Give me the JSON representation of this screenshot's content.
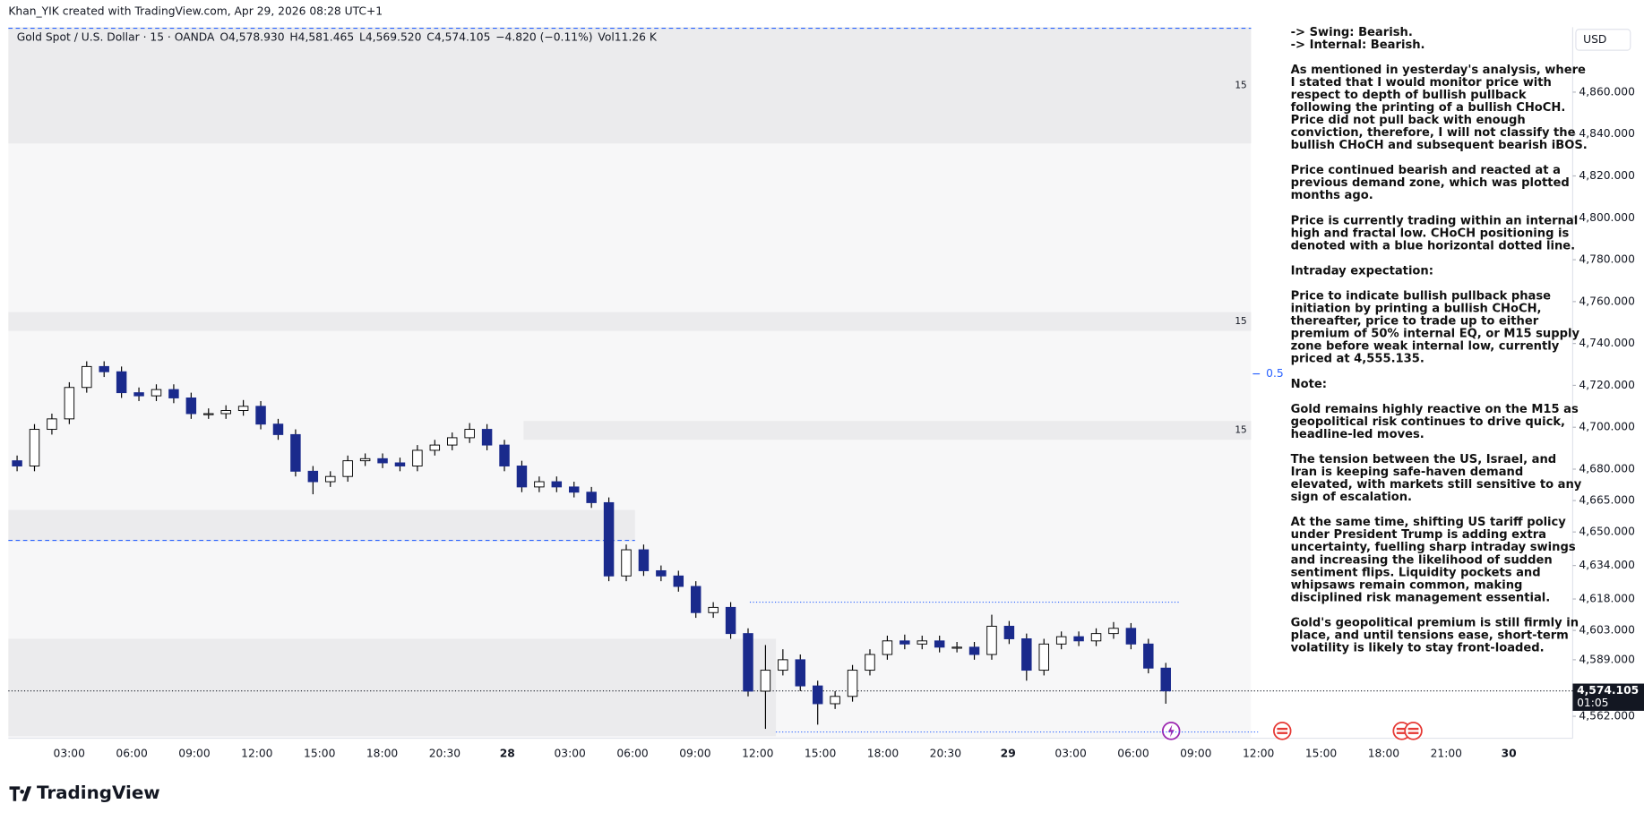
{
  "header": {
    "credit": "Khan_YIK created with TradingView.com, Apr 29, 2026 08:28 UTC+1"
  },
  "footer": {
    "brand": "TradingView"
  },
  "chart_data": {
    "type": "candlestick",
    "symbol": "Gold Spot / U.S. Dollar · 15 · OANDA",
    "legend": [
      "O4,578.930",
      "H4,581.465",
      "L4,569.520",
      "C4,574.105",
      "−4.820 (−0.11%)",
      "Vol11.26 K"
    ],
    "currency": "USD",
    "up_color": "#ffffff",
    "down_color": "#1a2a8c",
    "wick_color": "#000000",
    "ylim": [
      4551.5,
      4891
    ],
    "yticks": [
      {
        "value": 4860,
        "label": "4,860.000"
      },
      {
        "value": 4840,
        "label": "4,840.000"
      },
      {
        "value": 4820,
        "label": "4,820.000"
      },
      {
        "value": 4800,
        "label": "4,800.000"
      },
      {
        "value": 4780,
        "label": "4,780.000"
      },
      {
        "value": 4760,
        "label": "4,760.000"
      },
      {
        "value": 4740,
        "label": "4,740.000"
      },
      {
        "value": 4720,
        "label": "4,720.000"
      },
      {
        "value": 4700,
        "label": "4,700.000"
      },
      {
        "value": 4680,
        "label": "4,680.000"
      },
      {
        "value": 4665,
        "label": "4,665.000"
      },
      {
        "value": 4650,
        "label": "4,650.000"
      },
      {
        "value": 4634,
        "label": "4,634.000"
      },
      {
        "value": 4618,
        "label": "4,618.000"
      },
      {
        "value": 4603,
        "label": "4,603.000"
      },
      {
        "value": 4589,
        "label": "4,589.000"
      },
      {
        "value": 4562,
        "label": "4,562.000"
      }
    ],
    "grid": false,
    "time_labels": [
      "03:00",
      "06:00",
      "09:00",
      "12:00",
      "15:00",
      "18:00",
      "20:30",
      "28",
      "03:00",
      "06:00",
      "09:00",
      "12:00",
      "15:00",
      "18:00",
      "20:30",
      "29",
      "03:00",
      "06:00",
      "09:00",
      "12:00",
      "15:00",
      "18:00",
      "21:00",
      "30"
    ],
    "candles": [
      [
        4684,
        4686.5,
        4679,
        4681.5
      ],
      [
        4681.5,
        4701.5,
        4679,
        4699
      ],
      [
        4699,
        4706.5,
        4696.5,
        4704
      ],
      [
        4704,
        4721.5,
        4701.5,
        4719
      ],
      [
        4719,
        4731.5,
        4716.5,
        4729
      ],
      [
        4729,
        4731.5,
        4724,
        4726.5
      ],
      [
        4726.5,
        4729,
        4714,
        4716.5
      ],
      [
        4716.5,
        4719,
        4712.5,
        4715
      ],
      [
        4715,
        4720.5,
        4712.5,
        4718
      ],
      [
        4718,
        4720.5,
        4711.5,
        4714
      ],
      [
        4714,
        4716.5,
        4704,
        4706.5
      ],
      [
        4706.5,
        4709,
        4704,
        4706.5
      ],
      [
        4706.5,
        4710.5,
        4704,
        4708
      ],
      [
        4708,
        4713,
        4705.5,
        4710
      ],
      [
        4710,
        4712.5,
        4699,
        4701.5
      ],
      [
        4701.5,
        4704,
        4694,
        4696.5
      ],
      [
        4696.5,
        4699,
        4676.5,
        4679
      ],
      [
        4679,
        4681.5,
        4668,
        4674
      ],
      [
        4674,
        4679,
        4671.5,
        4676.5
      ],
      [
        4676.5,
        4686.5,
        4674,
        4684
      ],
      [
        4684,
        4687.5,
        4681.5,
        4685
      ],
      [
        4685,
        4687.5,
        4680.5,
        4683
      ],
      [
        4683,
        4685.5,
        4679,
        4681.5
      ],
      [
        4681.5,
        4691.5,
        4679,
        4689
      ],
      [
        4689,
        4694,
        4686.5,
        4691.5
      ],
      [
        4691.5,
        4697.5,
        4689,
        4695
      ],
      [
        4695,
        4702,
        4692.5,
        4699
      ],
      [
        4699,
        4701.5,
        4689,
        4691.5
      ],
      [
        4691.5,
        4694,
        4679,
        4681.5
      ],
      [
        4681.5,
        4684,
        4669,
        4671.5
      ],
      [
        4671.5,
        4676.5,
        4669,
        4674
      ],
      [
        4674,
        4676.5,
        4669,
        4671.5
      ],
      [
        4671.5,
        4674,
        4666.5,
        4669
      ],
      [
        4669,
        4671.5,
        4661.5,
        4664
      ],
      [
        4664,
        4666.5,
        4626.5,
        4629
      ],
      [
        4629,
        4644,
        4626.5,
        4641.5
      ],
      [
        4641.5,
        4644,
        4629,
        4631.5
      ],
      [
        4631.5,
        4634,
        4626.5,
        4629
      ],
      [
        4629,
        4631.5,
        4621.5,
        4624
      ],
      [
        4624,
        4626.5,
        4609,
        4611.5
      ],
      [
        4611.5,
        4616.5,
        4609,
        4614
      ],
      [
        4614,
        4616.5,
        4599,
        4601.5
      ],
      [
        4601.5,
        4604,
        4571.5,
        4574
      ],
      [
        4574,
        4596,
        4556,
        4584
      ],
      [
        4584,
        4594,
        4581.5,
        4589
      ],
      [
        4589,
        4591.5,
        4574,
        4576.5
      ],
      [
        4576.5,
        4579,
        4558,
        4568
      ],
      [
        4568,
        4574,
        4565.5,
        4571.5
      ],
      [
        4571.5,
        4586.5,
        4569,
        4584
      ],
      [
        4584,
        4594,
        4581.5,
        4591.5
      ],
      [
        4591.5,
        4600.5,
        4589,
        4598
      ],
      [
        4598,
        4601,
        4594,
        4596.5
      ],
      [
        4596.5,
        4600.5,
        4594,
        4598
      ],
      [
        4598,
        4600.5,
        4592.5,
        4595
      ],
      [
        4595,
        4597.5,
        4592.5,
        4595
      ],
      [
        4595,
        4597.5,
        4589,
        4591.5
      ],
      [
        4591.5,
        4610.5,
        4589,
        4605
      ],
      [
        4605,
        4607.5,
        4596.5,
        4599
      ],
      [
        4599,
        4601.5,
        4579,
        4584
      ],
      [
        4584,
        4599,
        4581.5,
        4596.5
      ],
      [
        4596.5,
        4602.5,
        4594,
        4600
      ],
      [
        4600,
        4602.5,
        4595.5,
        4598
      ],
      [
        4598,
        4604,
        4595.5,
        4601.5
      ],
      [
        4601.5,
        4607,
        4599,
        4604
      ],
      [
        4604,
        4606.5,
        4594,
        4596.5
      ],
      [
        4596.5,
        4599,
        4582.5,
        4585
      ],
      [
        4585,
        4587.5,
        4568,
        4574.105
      ]
    ],
    "zones": [
      {
        "top": 4891,
        "bottom": 4835.5,
        "from": 0,
        "to": 71.4,
        "label": "15"
      },
      {
        "top": 4755,
        "bottom": 4746,
        "from": 0,
        "to": 71.4,
        "label": "15"
      },
      {
        "top": 4703,
        "bottom": 4694,
        "from": 29.6,
        "to": 71.4,
        "label": "15"
      },
      {
        "top": 4660.5,
        "bottom": 4645.5,
        "from": 0,
        "to": 36
      },
      {
        "top": 4599,
        "bottom": 4552.5,
        "from": 0,
        "to": 44.1
      }
    ],
    "zone_color": "#ebebed",
    "levels": [
      {
        "price": 4890.5,
        "from": 0,
        "to": 71.4,
        "color": "#2962ff",
        "style": "dashed"
      },
      {
        "price": 4646,
        "from": 0,
        "to": 36,
        "color": "#2962ff",
        "style": "dashed"
      },
      {
        "price": 4616.5,
        "from": 42.6,
        "to": 67.3,
        "color": "#2962ff",
        "style": "dotted"
      },
      {
        "price": 4554.5,
        "from": 44.1,
        "to": 71.8,
        "color": "#2962ff",
        "style": "dotted"
      },
      {
        "price": 4725.5,
        "from": 71.5,
        "to": 71.9,
        "color": "#2962ff",
        "style": "solid",
        "label": "0.5"
      }
    ],
    "price_label": {
      "value": 4574.105,
      "label": "4,574.105"
    },
    "countdown": "01:05"
  },
  "notes": {
    "paragraphs": [
      [
        "-> Swing: Bearish.",
        "-> Internal: Bearish."
      ],
      [
        "As mentioned in yesterday's analysis, where",
        "I stated that I would monitor price with",
        "respect to depth of bullish pullback",
        "following the printing of a bullish CHoCH.",
        "Price did not pull back with enough",
        "conviction, therefore, I will not classify the",
        "bullish CHoCH and subsequent bearish iBOS."
      ],
      [
        "Price continued bearish and reacted at a",
        "previous demand zone, which was plotted",
        "months ago."
      ],
      [
        "Price is currently trading within an internal",
        "high and fractal low.  CHoCH positioning is",
        "denoted with a blue horizontal dotted line."
      ],
      [
        "Intraday expectation:"
      ],
      [
        "Price to indicate bullish pullback phase",
        "initiation by printing a bullish CHoCH,",
        "thereafter, price to trade up to either",
        "premium of 50% internal EQ, or M15 supply",
        "zone before weak internal low, currently",
        "priced at 4,555.135."
      ],
      [
        "Note:"
      ],
      [
        "Gold remains highly reactive on the M15 as",
        "geopolitical risk continues to drive quick,",
        "headline-led moves."
      ],
      [
        "The tension between the US, Israel, and",
        "Iran is keeping safe-haven demand",
        "elevated, with markets still sensitive to any",
        "sign of escalation."
      ],
      [
        "At the same time, shifting US tariff policy",
        "under President Trump is adding extra",
        "uncertainty, fuelling sharp intraday swings",
        "and increasing the likelihood of sudden",
        "sentiment flips. Liquidity pockets and",
        "whipsaws remain common, making",
        "disciplined risk management essential."
      ],
      [
        "Gold's geopolitical premium is still firmly in",
        "place, and until tensions ease, short-term",
        "volatility is likely to stay front-loaded."
      ]
    ]
  }
}
